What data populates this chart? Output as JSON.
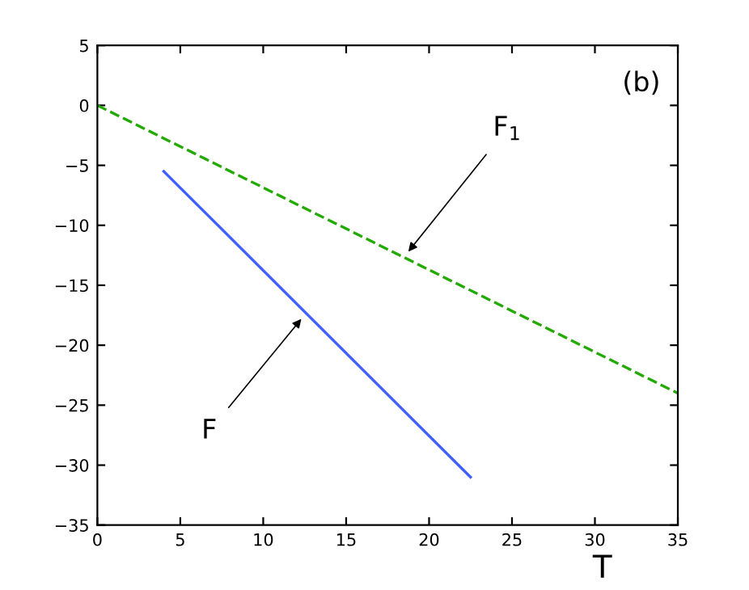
{
  "chart_data": {
    "type": "line",
    "xlabel": "T",
    "annotations": [
      "(b)",
      {
        "text": "F",
        "x": 12.3,
        "y": -17.8
      },
      {
        "text": "F$_{1}$",
        "x": 18.75,
        "y": -12.2
      }
    ],
    "series": [
      {
        "color": "#3f5fff",
        "line_style": "solid",
        "x": [
          4,
          22.5
        ],
        "values": [
          -5.5,
          -31
        ]
      },
      {
        "color": "#22aa00",
        "line_style": "dashed",
        "x": [
          0,
          35
        ],
        "values": [
          0,
          -24
        ]
      }
    ],
    "xlim": [
      0,
      35
    ],
    "xticks": [
      0,
      5,
      10,
      15,
      20,
      25,
      30,
      35
    ],
    "ylim": [
      -35,
      5
    ],
    "yticks": [
      -35,
      -30,
      -25,
      -20,
      -15,
      -10,
      -5,
      0,
      5
    ],
    "grid": false,
    "legend": false,
    "marker": "none"
  }
}
